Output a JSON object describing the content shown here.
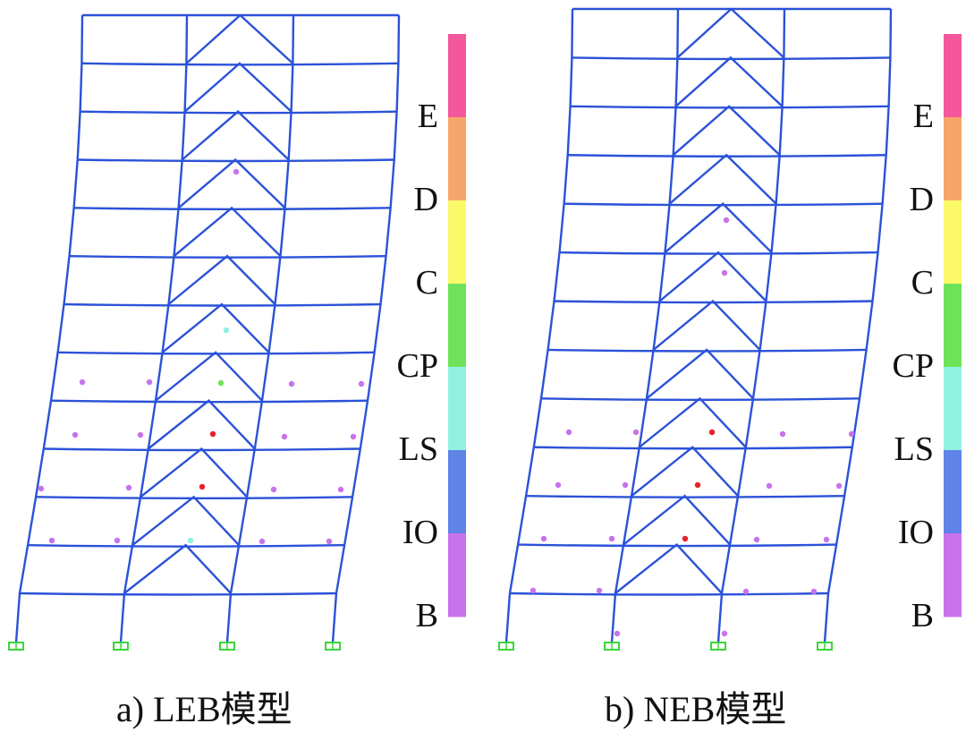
{
  "figure": {
    "panels": [
      {
        "caption": "a)  LEB模型"
      },
      {
        "caption": "b)  NEB模型"
      }
    ]
  },
  "legend": {
    "levels": [
      {
        "label": "E",
        "color": "#f4579b"
      },
      {
        "label": "D",
        "color": "#f7a66b"
      },
      {
        "label": "C",
        "color": "#fbf96a"
      },
      {
        "label": "CP",
        "color": "#6ee35a"
      },
      {
        "label": "LS",
        "color": "#91f1e1"
      },
      {
        "label": "IO",
        "color": "#5f83e6"
      },
      {
        "label": "B",
        "color": "#c873ec"
      }
    ]
  },
  "colors": {
    "frame": "#2b52d8",
    "support": "#3bd63b",
    "hinge_B": "#c873ec",
    "hinge_red": "#e8202a"
  }
}
